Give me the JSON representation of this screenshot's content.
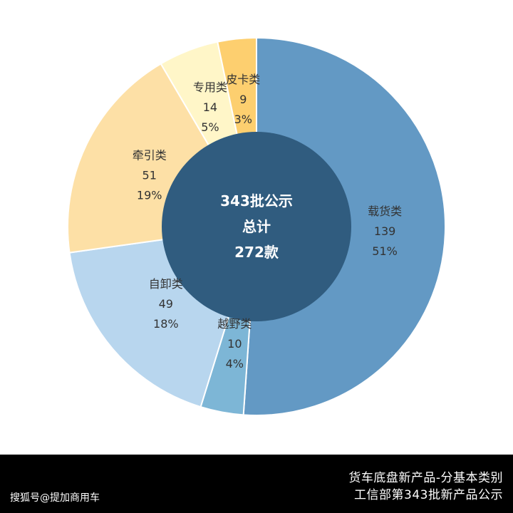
{
  "chart_data": {
    "type": "pie",
    "center_lines": [
      "343批公示",
      "总计",
      "272款"
    ],
    "slices": [
      {
        "label": "载货类",
        "value": 139,
        "percent": "51%",
        "color": "#6399c4"
      },
      {
        "label": "越野类",
        "value": 10,
        "percent": "4%",
        "color": "#7db6d6"
      },
      {
        "label": "自卸类",
        "value": 49,
        "percent": "18%",
        "color": "#b8d6ee"
      },
      {
        "label": "牵引类",
        "value": 51,
        "percent": "19%",
        "color": "#fde0a6"
      },
      {
        "label": "专用类",
        "value": 14,
        "percent": "5%",
        "color": "#fff6c8"
      },
      {
        "label": "皮卡类",
        "value": 9,
        "percent": "3%",
        "color": "#fdcf6f"
      }
    ],
    "center_color": "#305c7f"
  },
  "footer": {
    "title_line1": "货车底盘新产品-分基本类别",
    "title_line2": "工信部第343批新产品公示",
    "brand": "搜狐号@提加商用车"
  }
}
